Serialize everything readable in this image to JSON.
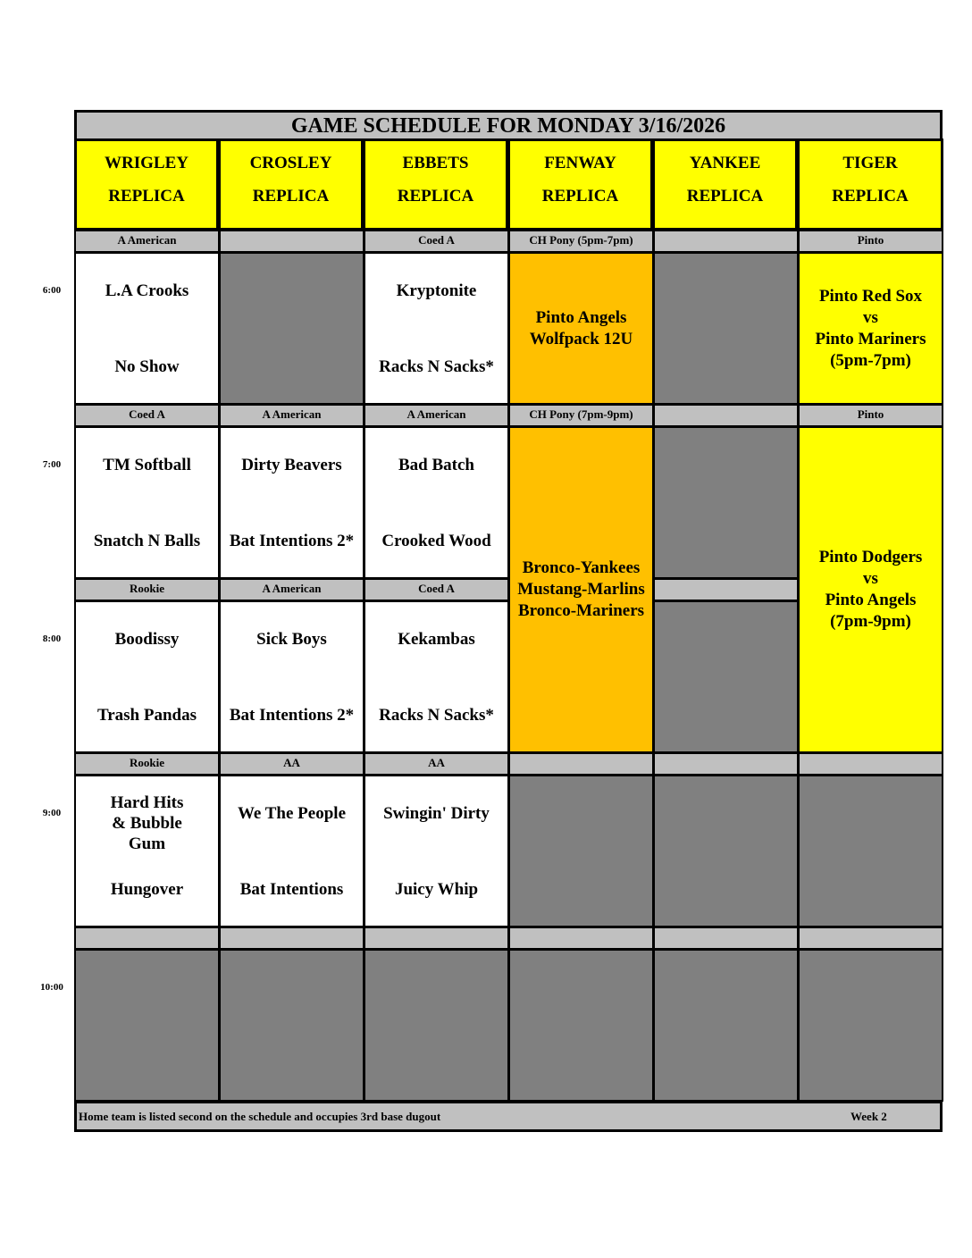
{
  "title": "GAME SCHEDULE FOR MONDAY 3/16/2026",
  "columns": [
    {
      "name": "WRIGLEY",
      "sub": "REPLICA"
    },
    {
      "name": "CROSLEY",
      "sub": "REPLICA"
    },
    {
      "name": "EBBETS",
      "sub": "REPLICA"
    },
    {
      "name": "FENWAY",
      "sub": "REPLICA"
    },
    {
      "name": "YANKEE",
      "sub": "REPLICA"
    },
    {
      "name": "TIGER",
      "sub": "REPLICA"
    }
  ],
  "slots": [
    {
      "time": "6:00",
      "labels": [
        "A American",
        "",
        "Coed A",
        "CH Pony (5pm-7pm)",
        "",
        "Pinto"
      ],
      "games": [
        {
          "away": "L.A Crooks",
          "home": "No Show"
        },
        null,
        {
          "away": "Kryptonite",
          "home": "Racks N Sacks*"
        },
        {
          "lines": [
            "Pinto Angels",
            "Wolfpack 12U"
          ],
          "color": "#FFC000"
        },
        null,
        {
          "lines": [
            "Pinto Red Sox",
            "vs",
            "Pinto Mariners",
            "(5pm-7pm)"
          ],
          "color": "#FFFF00"
        }
      ]
    },
    {
      "time": "7:00",
      "labels": [
        "Coed A",
        "A American",
        "A American",
        "CH Pony (7pm-9pm)",
        "",
        "Pinto"
      ],
      "games": [
        {
          "away": "TM Softball",
          "home": "Snatch N Balls"
        },
        {
          "away": "Dirty Beavers",
          "home": "Bat Intentions 2*"
        },
        {
          "away": "Bad Batch",
          "home": "Crooked Wood"
        },
        {
          "lines": [
            "Bronco-Yankees",
            "Mustang-Marlins",
            "Bronco-Mariners"
          ],
          "color": "#FFC000"
        },
        null,
        {
          "lines": [
            "Pinto Dodgers",
            "vs",
            "Pinto Angels",
            "(7pm-9pm)"
          ],
          "color": "#FFFF00"
        }
      ]
    },
    {
      "time": "8:00",
      "labels": [
        "Rookie",
        "A American",
        "Coed A",
        "",
        "",
        ""
      ],
      "games": [
        {
          "away": "Boodissy",
          "home": "Trash Pandas"
        },
        {
          "away": "Sick Boys",
          "home": "Bat Intentions 2*"
        },
        {
          "away": "Kekambas",
          "home": "Racks N Sacks*"
        },
        null,
        null,
        null
      ]
    },
    {
      "time": "9:00",
      "labels": [
        "Rookie",
        "AA",
        "AA",
        "",
        "",
        ""
      ],
      "games": [
        {
          "away": "Hard Hits & Bubble Gum",
          "home": "Hungover"
        },
        {
          "away": "We The People",
          "home": "Bat Intentions"
        },
        {
          "away": "Swingin' Dirty",
          "home": "Juicy Whip"
        },
        null,
        null,
        null
      ]
    },
    {
      "time": "10:00",
      "labels": [
        "",
        "",
        "",
        "",
        "",
        ""
      ],
      "games": [
        null,
        null,
        null,
        null,
        null,
        null
      ]
    }
  ],
  "footer": {
    "note": "Home team is listed second on the schedule and occupies 3rd base dugout",
    "week": "Week 2"
  },
  "colors": {
    "header": "#FFFF00",
    "label_row": "#C0C0C0",
    "unused": "#808080",
    "pony": "#FFC000",
    "pinto": "#FFFF00"
  }
}
